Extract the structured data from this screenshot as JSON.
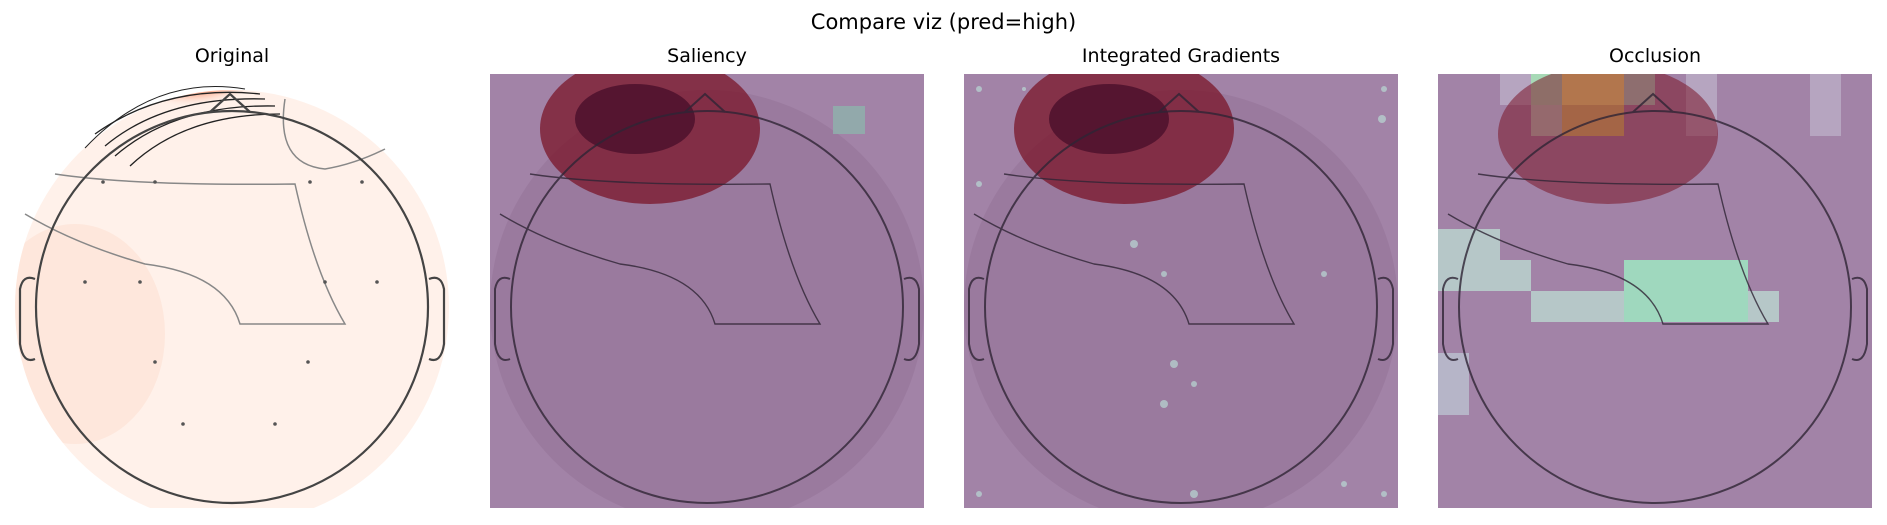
{
  "figure": {
    "suptitle": "Compare viz (pred=high)",
    "panels": [
      {
        "title": "Original",
        "overlay": "none"
      },
      {
        "title": "Saliency",
        "overlay": "saliency"
      },
      {
        "title": "Integrated Gradients",
        "overlay": "integrated-gradients"
      },
      {
        "title": "Occlusion",
        "overlay": "occlusion"
      }
    ]
  },
  "colors": {
    "topomap_light": "#fff5f0",
    "topomap_dark": "#67000d",
    "overlay_base": "#9c7aa3",
    "overlay_teal": "#7ecfbf",
    "overlay_yellow": "#f5ea7a",
    "head_outline": "#333333"
  }
}
